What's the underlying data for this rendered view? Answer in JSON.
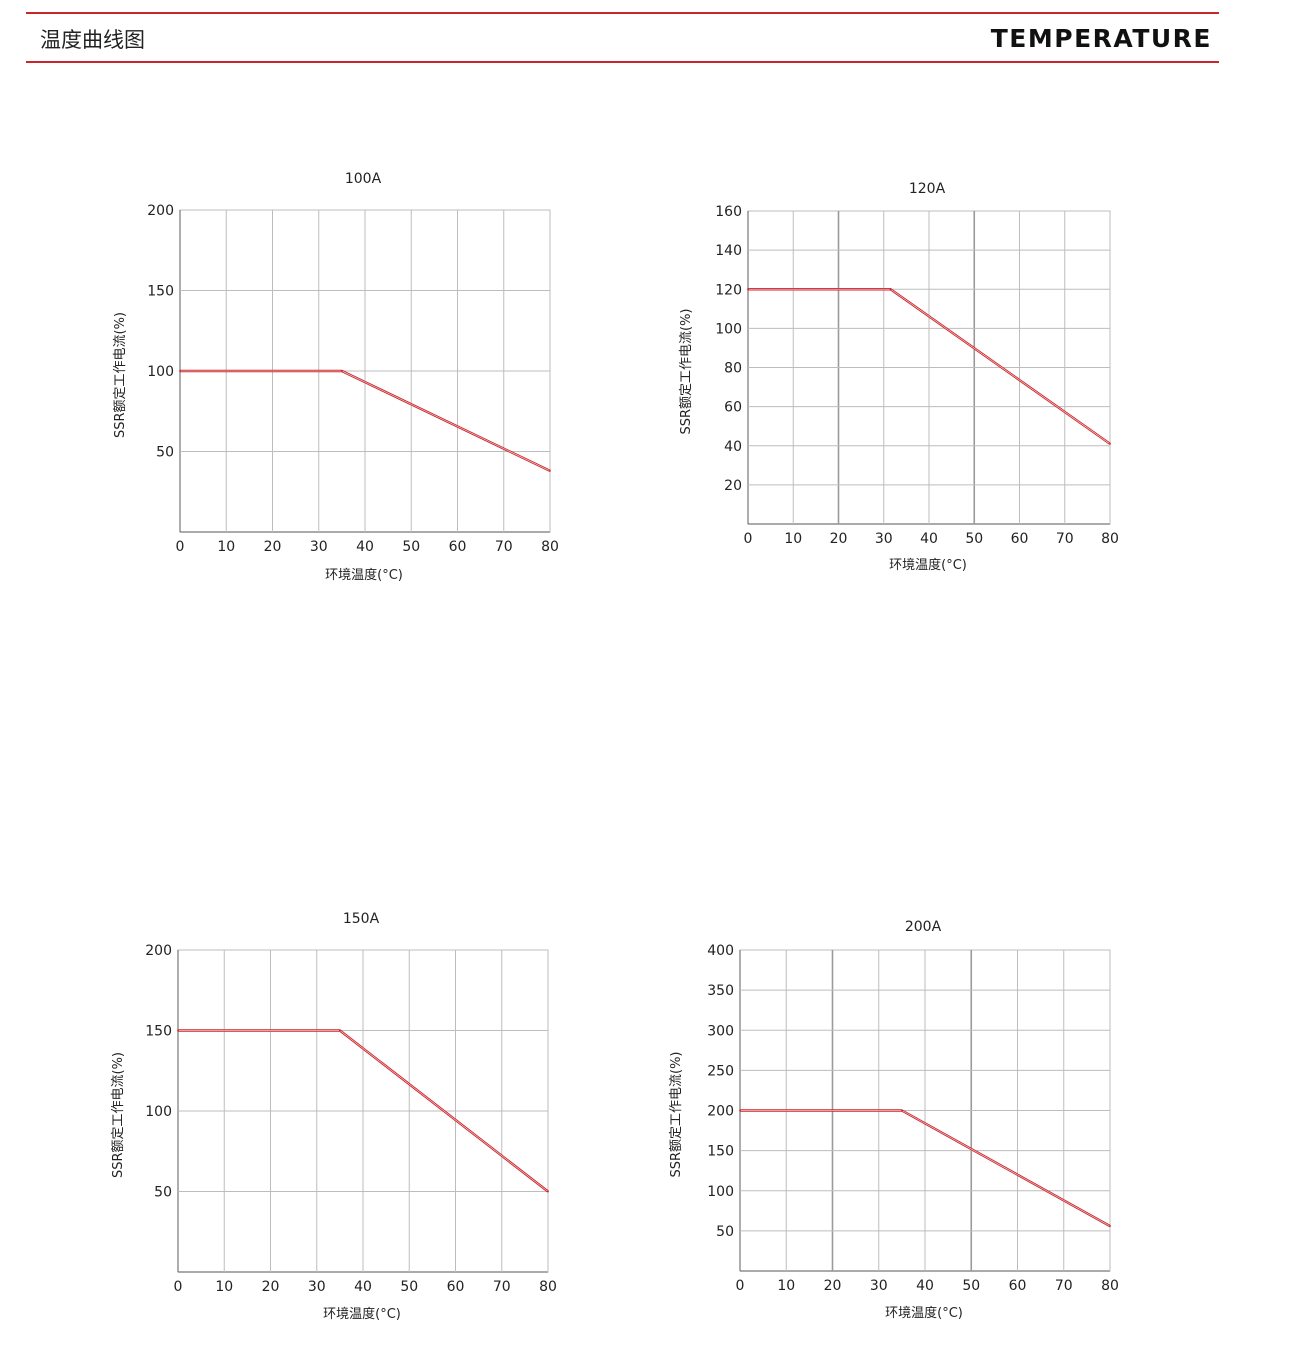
{
  "header": {
    "title_cn": "温度曲线图",
    "title_en": "TEMPERATURE"
  },
  "theme": {
    "accent": "#c9262c",
    "grid": "#bdbdbd",
    "grid_major": "#9a9a9a"
  },
  "chart_data": [
    {
      "type": "line",
      "title": "100A",
      "xlabel": "环境温度(°C)",
      "ylabel": "SSR额定工作电流(%)",
      "xlim": [
        0,
        80
      ],
      "ylim": [
        0,
        200
      ],
      "xticks": [
        0,
        10,
        20,
        30,
        40,
        50,
        60,
        70,
        80
      ],
      "yticks": [
        50,
        100,
        150,
        200
      ],
      "xgrid": [
        10,
        20,
        30,
        40,
        50,
        60,
        70,
        80
      ],
      "ygrid": [
        50,
        100,
        150
      ],
      "grid": true,
      "series": [
        {
          "x": [
            0,
            35,
            80
          ],
          "y": [
            100,
            100,
            38
          ]
        }
      ]
    },
    {
      "type": "line",
      "title": "120A",
      "xlabel": "环境温度(°C)",
      "ylabel": "SSR额定工作电流(%)",
      "xlim": [
        0,
        80
      ],
      "ylim": [
        0,
        160
      ],
      "xticks": [
        0,
        10,
        20,
        30,
        40,
        50,
        60,
        70,
        80
      ],
      "yticks": [
        20,
        40,
        60,
        80,
        100,
        120,
        140,
        160
      ],
      "xgrid": [
        10,
        20,
        30,
        40,
        50,
        60,
        70,
        80
      ],
      "ygrid": [
        20,
        40,
        60,
        80,
        100,
        120,
        140
      ],
      "grid": true,
      "series": [
        {
          "x": [
            0,
            31.5,
            80
          ],
          "y": [
            120,
            120,
            41
          ]
        }
      ]
    },
    {
      "type": "line",
      "title": "150A",
      "xlabel": "环境温度(°C)",
      "ylabel": "SSR额定工作电流(%)",
      "xlim": [
        0,
        80
      ],
      "ylim": [
        0,
        200
      ],
      "xticks": [
        0,
        10,
        20,
        30,
        40,
        50,
        60,
        70,
        80
      ],
      "yticks": [
        50,
        100,
        150,
        200
      ],
      "xgrid": [
        10,
        20,
        30,
        40,
        50,
        60,
        70,
        80
      ],
      "ygrid": [
        50,
        100,
        150
      ],
      "grid": true,
      "series": [
        {
          "x": [
            0,
            35,
            80
          ],
          "y": [
            150,
            150,
            50
          ]
        }
      ]
    },
    {
      "type": "line",
      "title": "200A",
      "xlabel": "环境温度(°C)",
      "ylabel": "SSR额定工作电流(%)",
      "xlim": [
        0,
        80
      ],
      "ylim": [
        0,
        400
      ],
      "xticks": [
        0,
        10,
        20,
        30,
        40,
        50,
        60,
        70,
        80
      ],
      "yticks": [
        50,
        100,
        150,
        200,
        250,
        300,
        350,
        400
      ],
      "xgrid": [
        10,
        20,
        30,
        40,
        50,
        60,
        70,
        80
      ],
      "ygrid": [
        50,
        100,
        150,
        200,
        250,
        300,
        350
      ],
      "grid": true,
      "series": [
        {
          "x": [
            0,
            35,
            80
          ],
          "y": [
            200,
            200,
            56
          ]
        }
      ]
    }
  ]
}
